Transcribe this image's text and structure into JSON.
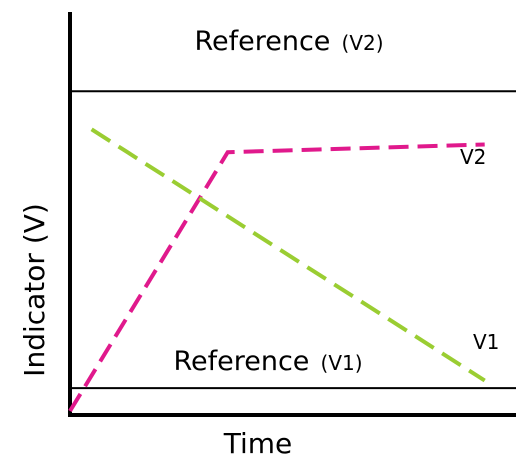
{
  "chart_data": {
    "type": "line",
    "xlabel": "Time",
    "ylabel": "Indicator (V)",
    "xlim": [
      0,
      100
    ],
    "ylim": [
      0,
      100
    ],
    "grid": false,
    "reference_lines": [
      {
        "name": "Reference",
        "sub": "(V2)",
        "y": 84
      },
      {
        "name": "Reference",
        "sub": "(V1)",
        "y": 6
      }
    ],
    "series": [
      {
        "name": "V2",
        "color": "#e0198c",
        "x": [
          0,
          36.5,
          96
        ],
        "y": [
          0,
          68,
          70
        ]
      },
      {
        "name": "V1",
        "color": "#9acd32",
        "x": [
          5,
          96
        ],
        "y": [
          74,
          8
        ]
      }
    ]
  }
}
